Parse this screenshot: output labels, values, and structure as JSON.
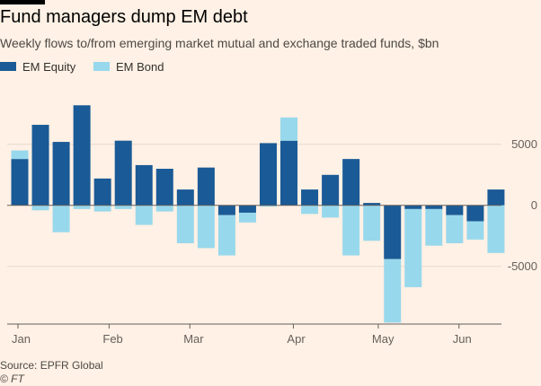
{
  "title": "Fund managers dump EM debt",
  "subtitle": "Weekly flows to/from emerging market mutual and exchange traded funds, $bn",
  "source": "Source: EPFR Global",
  "credit": "© FT",
  "colors": {
    "background": "#FFF1E5",
    "em_equity": "#1A5A96",
    "em_bond": "#98D8EC",
    "gridline": "#E6D9CE",
    "zero_line": "#66605C"
  },
  "chart_data": {
    "type": "bar",
    "stacked": true,
    "grid": true,
    "legend_position": "top-left",
    "y_axis_position": "right",
    "ylim": [
      -9500,
      10500
    ],
    "yticks": [
      {
        "value": 5000,
        "label": "5000"
      },
      {
        "value": 0,
        "label": "0"
      },
      {
        "value": -5000,
        "label": "-5000"
      }
    ],
    "month_labels": [
      {
        "label": "Jan",
        "at_week": 0
      },
      {
        "label": "Feb",
        "at_week": 4.4
      },
      {
        "label": "Mar",
        "at_week": 8.3
      },
      {
        "label": "Apr",
        "at_week": 13.3
      },
      {
        "label": "May",
        "at_week": 17.4
      },
      {
        "label": "Jun",
        "at_week": 21.3
      }
    ],
    "series": [
      {
        "name": "EM Equity",
        "color": "#1A5A96",
        "values": [
          3800,
          6600,
          5200,
          8200,
          2200,
          5300,
          3300,
          3000,
          1300,
          3100,
          -800,
          -600,
          5100,
          5300,
          1300,
          2500,
          3800,
          200,
          -4400,
          -300,
          -300,
          -800,
          -1300,
          1300
        ]
      },
      {
        "name": "EM Bond",
        "color": "#98D8EC",
        "values": [
          700,
          -400,
          -2200,
          -300,
          -500,
          -300,
          -1600,
          -500,
          -3100,
          -3500,
          -3300,
          -800,
          -100,
          1900,
          -700,
          -1000,
          -4100,
          -2900,
          -5200,
          -6400,
          -3000,
          -2300,
          -1500,
          -3900
        ]
      }
    ]
  }
}
